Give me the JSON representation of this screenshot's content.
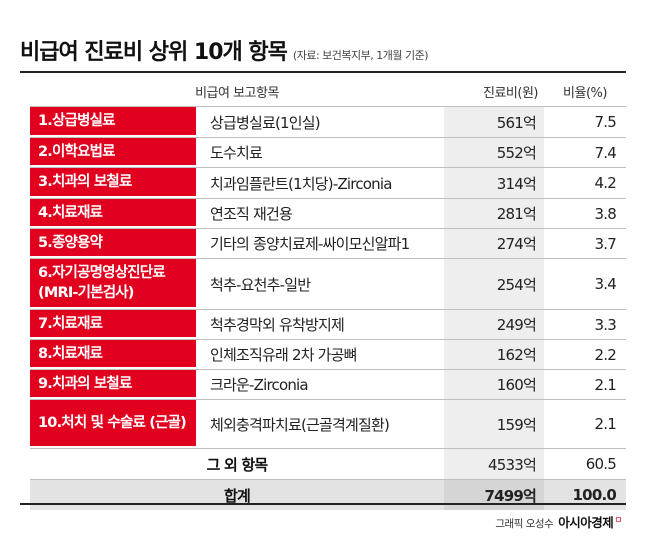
{
  "header": {
    "title": "비급여 진료비 상위 10개 항목",
    "source": "(자료: 보건복지부, 1개월 기준)"
  },
  "columns": {
    "item": "비급여 보고항목",
    "cost": "진료비(원)",
    "ratio": "비율(%)"
  },
  "rows": [
    {
      "category": "1.상급병실료",
      "item": "상급병실료(1인실)",
      "cost": "561억",
      "ratio": "7.5"
    },
    {
      "category": "2.이학요법료",
      "item": "도수치료",
      "cost": "552억",
      "ratio": "7.4"
    },
    {
      "category": "3.치과의 보철료",
      "item": "치과임플란트(1치당)-Zirconia",
      "cost": "314억",
      "ratio": "4.2"
    },
    {
      "category": "4.치료재료",
      "item": "연조직 재건용",
      "cost": "281억",
      "ratio": "3.8"
    },
    {
      "category": "5.종양용약",
      "item": "기타의 종양치료제-싸이모신알파1",
      "cost": "274억",
      "ratio": "3.7"
    },
    {
      "category": "6.자기공명영상진단료 (MRI-기본검사)",
      "item": "척추-요천추-일반",
      "cost": "254억",
      "ratio": "3.4"
    },
    {
      "category": "7.치료재료",
      "item": "척추경막외 유착방지제",
      "cost": "249억",
      "ratio": "3.3"
    },
    {
      "category": "8.치료재료",
      "item": "인체조직유래 2차 가공뼈",
      "cost": "162억",
      "ratio": "2.2"
    },
    {
      "category": "9.치과의 보철료",
      "item": "크라운-Zirconia",
      "cost": "160억",
      "ratio": "2.1"
    },
    {
      "category": "10.처치 및 수술료 (근골)",
      "item": "체외충격파치료(근골격계질환)",
      "cost": "159억",
      "ratio": "2.1"
    }
  ],
  "other": {
    "label": "그 외 항목",
    "cost": "4533억",
    "ratio": "60.5"
  },
  "total": {
    "label": "합계",
    "cost": "7499억",
    "ratio": "100.0"
  },
  "credit": {
    "prefix": "그래픽 오성수",
    "brand": "아시아경제",
    "mark": "ㅁ"
  },
  "colors": {
    "accent": "#e1001d",
    "cost_bg": "#eeeeee",
    "total_bg": "#e3e3e3"
  }
}
